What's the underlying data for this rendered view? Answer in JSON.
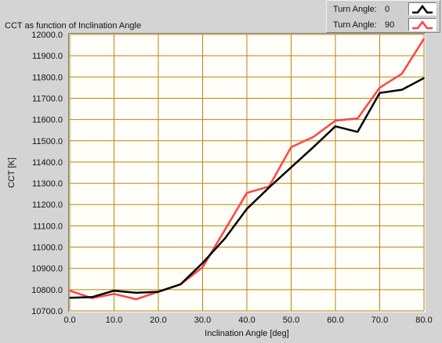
{
  "chart_data": {
    "type": "line",
    "title": "CCT as function of Inclination Angle",
    "xlabel": "Inclination Angle [deg]",
    "ylabel": "CCT [K]",
    "xlim": [
      0,
      80
    ],
    "ylim": [
      10700,
      12000
    ],
    "grid": true,
    "legend_position": "top-right",
    "x_ticks": [
      "0.0",
      "10.0",
      "20.0",
      "30.0",
      "40.0",
      "50.0",
      "60.0",
      "70.0",
      "80.0"
    ],
    "y_ticks": [
      "10700.0",
      "10800.0",
      "10900.0",
      "11000.0",
      "11100.0",
      "11200.0",
      "11300.0",
      "11400.0",
      "11500.0",
      "11600.0",
      "11700.0",
      "11800.0",
      "11900.0",
      "12000.0"
    ],
    "x": [
      0,
      5,
      10,
      15,
      20,
      25,
      30,
      35,
      40,
      45,
      50,
      55,
      60,
      65,
      70,
      75,
      80
    ],
    "series": [
      {
        "name": "Turn Angle: 0",
        "color": "#000000",
        "values": [
          10762,
          10765,
          10795,
          10785,
          10790,
          10825,
          10925,
          11040,
          11180,
          11280,
          11375,
          11470,
          11568,
          11542,
          11725,
          11740,
          11795
        ]
      },
      {
        "name": "Turn Angle: 90",
        "color": "#ff4444",
        "values": [
          10795,
          10760,
          10780,
          10755,
          10790,
          10825,
          10905,
          11080,
          11255,
          11285,
          11470,
          11518,
          11595,
          11605,
          11750,
          11815,
          11980
        ]
      }
    ]
  },
  "legend": {
    "items": [
      {
        "label": "Turn Angle:",
        "value": "0",
        "color": "#000000"
      },
      {
        "label": "Turn Angle:",
        "value": "90",
        "color": "#ff4444"
      }
    ]
  },
  "colors": {
    "plot_background": "#fffef8",
    "grid": "#b8860b",
    "panel": "#d4d4d4"
  }
}
